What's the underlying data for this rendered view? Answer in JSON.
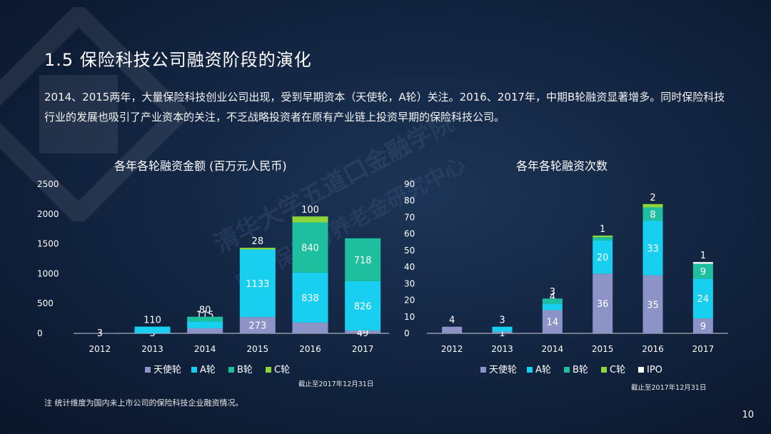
{
  "slide": {
    "title": "1.5  保险科技公司融资阶段的演化",
    "paragraph": "2014、2015两年，大量保险科技创业公司出现，受到早期资本（天使轮，A轮）关注。2016、2017年，中期B轮融资显著增多。同时保险科技行业的发展也吸引了产业资本的关注，不乏战略投资者在原有产业链上投资早期的保险科技公司。",
    "watermark_line1": "清华大学五道口金融学院",
    "watermark_line2": "中国保险与养老金研究中心",
    "note": "注    统计维度为国内未上市公司的保险科技企业融资情况。",
    "page_number": "10",
    "chart1_source": "截止至2017年12月31日",
    "chart2_source": "截止至2017年12月31日"
  },
  "colors": {
    "angel": "#8c93c7",
    "a_round": "#19cfef",
    "b_round": "#1ebf9f",
    "c_round": "#8ed63c",
    "ipo": "#ffffff"
  },
  "chart_data": [
    {
      "type": "bar",
      "stacked": true,
      "title": "各年各轮融资金额   (百万元人民币)",
      "categories": [
        "2012",
        "2013",
        "2014",
        "2015",
        "2016",
        "2017"
      ],
      "ylim": [
        0,
        2500
      ],
      "yticks": [
        "0",
        "500",
        "1000",
        "1500",
        "2000",
        "2500"
      ],
      "series": [
        {
          "name": "天使轮",
          "values": [
            3,
            3,
            84,
            273,
            181,
            49
          ],
          "labels": [
            "3",
            "3",
            "84",
            "273",
            "181",
            "49"
          ]
        },
        {
          "name": "A轮",
          "values": [
            0,
            110,
            115,
            1133,
            838,
            826
          ],
          "labels": [
            "",
            "110",
            "115",
            "1133",
            "838",
            "826"
          ]
        },
        {
          "name": "B轮",
          "values": [
            0,
            0,
            80,
            0,
            840,
            718
          ],
          "labels": [
            "",
            "",
            "80",
            "",
            "840",
            "718"
          ]
        },
        {
          "name": "C轮",
          "values": [
            0,
            0,
            0,
            28,
            100,
            0
          ],
          "labels": [
            "",
            "",
            "",
            "28",
            "100",
            ""
          ]
        }
      ],
      "legend": [
        "天使轮",
        "A轮",
        "B轮",
        "C轮"
      ],
      "legend_position": "bottom",
      "grid": false
    },
    {
      "type": "bar",
      "stacked": true,
      "title": "各年各轮融资次数",
      "categories": [
        "2012",
        "2013",
        "2014",
        "2015",
        "2016",
        "2017"
      ],
      "ylim": [
        0,
        90
      ],
      "yticks": [
        "0",
        "10",
        "20",
        "30",
        "40",
        "50",
        "60",
        "70",
        "80",
        "90"
      ],
      "series": [
        {
          "name": "天使轮",
          "values": [
            4,
            1,
            14,
            36,
            35,
            9
          ],
          "labels": [
            "4",
            "1",
            "14",
            "36",
            "35",
            "9"
          ]
        },
        {
          "name": "A轮",
          "values": [
            0,
            3,
            4,
            20,
            33,
            24
          ],
          "labels": [
            "",
            "3",
            "4",
            "20",
            "33",
            "24"
          ]
        },
        {
          "name": "B轮",
          "values": [
            0,
            0,
            3,
            2,
            8,
            9
          ],
          "labels": [
            "",
            "",
            "3",
            "",
            "8",
            "9"
          ]
        },
        {
          "name": "C轮",
          "values": [
            0,
            0,
            0,
            1,
            2,
            0
          ],
          "labels": [
            "",
            "",
            "",
            "1",
            "2",
            ""
          ]
        },
        {
          "name": "IPO",
          "values": [
            0,
            0,
            0,
            0,
            0,
            1
          ],
          "labels": [
            "",
            "",
            "",
            "",
            "",
            "1"
          ]
        }
      ],
      "legend": [
        "天使轮",
        "A轮",
        "B轮",
        "C轮",
        "IPO"
      ],
      "legend_position": "bottom",
      "grid": false
    }
  ]
}
